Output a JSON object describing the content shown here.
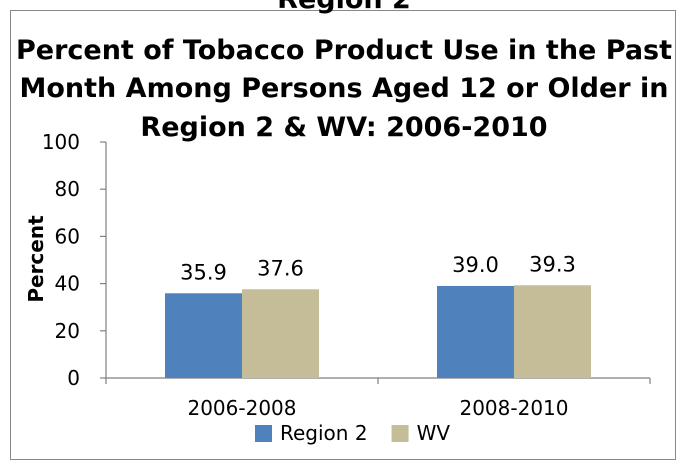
{
  "chart_data": {
    "type": "bar",
    "cut_title": "Region 2",
    "title_lines": [
      "Percent of Tobacco Product Use in the Past",
      "Month Among Persons Aged 12 or Older in",
      "Region 2 & WV: 2006-2010"
    ],
    "ylabel": "Percent",
    "xlabel": "",
    "ylim": [
      0,
      100
    ],
    "yticks": [
      "0",
      "20",
      "40",
      "60",
      "80",
      "100"
    ],
    "categories": [
      "2006-2008",
      "2008-2010"
    ],
    "series": [
      {
        "name": "Region 2",
        "values": [
          35.9,
          39.0
        ],
        "labels": [
          "35.9",
          "39.0"
        ],
        "color": "#4f81bd"
      },
      {
        "name": "WV",
        "values": [
          37.6,
          39.3
        ],
        "labels": [
          "37.6",
          "39.3"
        ],
        "color": "#c4bd97"
      }
    ],
    "grid": false,
    "legend": "bottom"
  }
}
